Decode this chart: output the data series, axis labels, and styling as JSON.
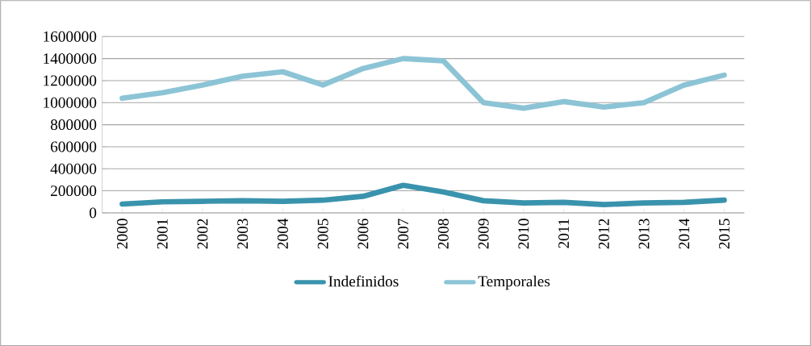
{
  "chart_data": {
    "type": "line",
    "categories": [
      "2000",
      "2001",
      "2002",
      "2003",
      "2004",
      "2005",
      "2006",
      "2007",
      "2008",
      "2009",
      "2010",
      "2011",
      "2012",
      "2013",
      "2014",
      "2015"
    ],
    "series": [
      {
        "name": "Indefinidos",
        "color": "#3a93ad",
        "values": [
          80000,
          100000,
          105000,
          110000,
          105000,
          115000,
          150000,
          250000,
          190000,
          110000,
          90000,
          95000,
          75000,
          90000,
          95000,
          115000
        ]
      },
      {
        "name": "Temporales",
        "color": "#8cc4d6",
        "values": [
          1040000,
          1090000,
          1160000,
          1240000,
          1280000,
          1160000,
          1310000,
          1400000,
          1380000,
          1000000,
          950000,
          1010000,
          960000,
          1000000,
          1160000,
          1250000
        ]
      }
    ],
    "ylim": [
      0,
      1600000
    ],
    "yticks": [
      0,
      200000,
      400000,
      600000,
      800000,
      1000000,
      1200000,
      1400000,
      1600000
    ],
    "grid": "y",
    "legend": "bottom",
    "marker": "none",
    "line_style": "solid"
  }
}
